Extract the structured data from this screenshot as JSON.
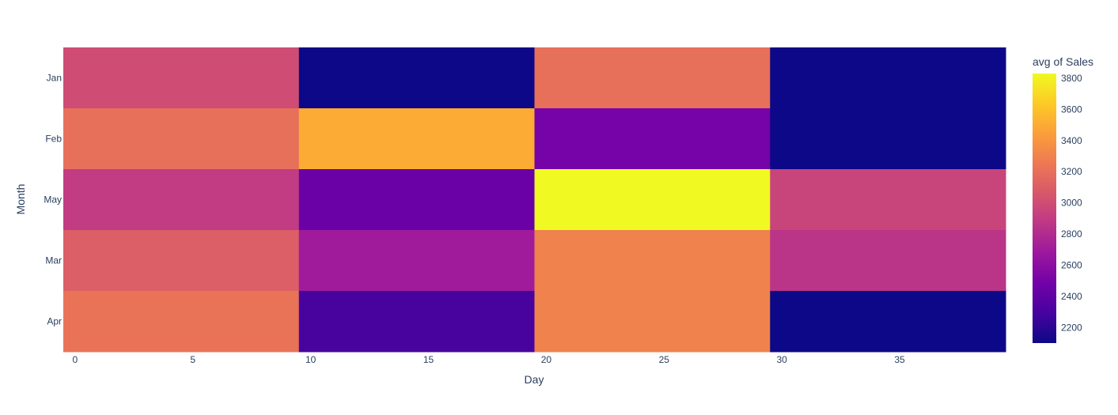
{
  "chart_data": {
    "type": "heatmap",
    "x_bins": [
      0,
      9.5,
      19.5,
      29.5,
      39.5
    ],
    "x_ticks": [
      0,
      5,
      10,
      15,
      20,
      25,
      30,
      35
    ],
    "xlim": [
      -0.5,
      39.5
    ],
    "y_categories": [
      "Jan",
      "Feb",
      "May",
      "Mar",
      "Apr"
    ],
    "values": [
      [
        3000,
        2100,
        3200,
        2100
      ],
      [
        3200,
        3500,
        2500,
        2100
      ],
      [
        2900,
        2450,
        3830,
        2950
      ],
      [
        3100,
        2700,
        3300,
        2850
      ],
      [
        3220,
        2300,
        3300,
        2100
      ]
    ],
    "xlabel": "Day",
    "ylabel": "Month",
    "colorbar": {
      "title": "avg of Sales",
      "min": 2100,
      "max": 3830,
      "ticks": [
        2200,
        2400,
        2600,
        2800,
        3000,
        3200,
        3400,
        3600,
        3800
      ]
    },
    "colorscale": [
      "#0d0887",
      "#46039f",
      "#7201a8",
      "#9c179e",
      "#bd3786",
      "#d8576b",
      "#ed7953",
      "#fb9f3a",
      "#fdca26",
      "#f0f921"
    ]
  }
}
